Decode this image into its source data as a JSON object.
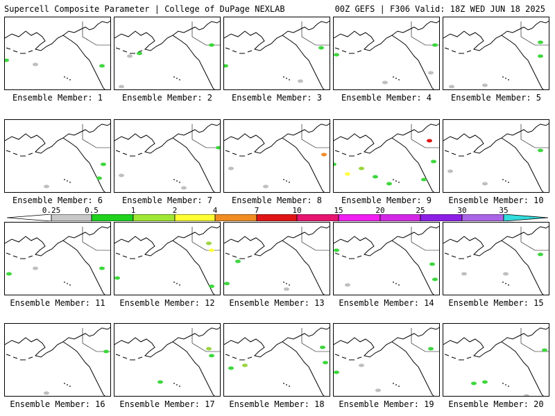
{
  "header": {
    "title_left": "Supercell Composite Parameter | College of DuPage NEXLAB",
    "title_right": "00Z GEFS | F306 Valid: 18Z WED JUN 18 2025"
  },
  "caption_prefix": "Ensemble Member: ",
  "members": [
    {
      "label": "Ensemble Member: 1",
      "blobs": [
        [
          2,
          62,
          "#3ed63e"
        ],
        [
          6,
          118,
          "#bfbfbf"
        ],
        [
          44,
          68,
          "#bfbfbf"
        ],
        [
          140,
          70,
          "#3ed63e"
        ]
      ]
    },
    {
      "label": "Ensemble Member: 2",
      "blobs": [
        [
          22,
          56,
          "#bfbfbf"
        ],
        [
          36,
          52,
          "#3ed63e"
        ],
        [
          10,
          100,
          "#bfbfbf"
        ],
        [
          140,
          40,
          "#3ed63e"
        ]
      ]
    },
    {
      "label": "Ensemble Member: 3",
      "blobs": [
        [
          2,
          70,
          "#3ed63e"
        ],
        [
          110,
          92,
          "#bfbfbf"
        ],
        [
          140,
          44,
          "#3ed63e"
        ],
        [
          6,
          118,
          "#bfbfbf"
        ]
      ]
    },
    {
      "label": "Ensemble Member: 4",
      "blobs": [
        [
          4,
          54,
          "#3ed63e"
        ],
        [
          74,
          94,
          "#bfbfbf"
        ],
        [
          146,
          40,
          "#3ed63e"
        ],
        [
          140,
          80,
          "#bfbfbf"
        ]
      ]
    },
    {
      "label": "Ensemble Member: 5",
      "blobs": [
        [
          140,
          36,
          "#3ed63e"
        ],
        [
          140,
          56,
          "#3ed63e"
        ],
        [
          60,
          98,
          "#bfbfbf"
        ],
        [
          12,
          100,
          "#bfbfbf"
        ]
      ]
    },
    {
      "label": "Ensemble Member: 6",
      "blobs": [
        [
          136,
          84,
          "#3ed63e"
        ],
        [
          142,
          64,
          "#3ed63e"
        ],
        [
          60,
          96,
          "#bfbfbf"
        ]
      ]
    },
    {
      "label": "Ensemble Member: 7",
      "blobs": [
        [
          150,
          40,
          "#3ed63e"
        ],
        [
          10,
          80,
          "#bfbfbf"
        ],
        [
          100,
          98,
          "#bfbfbf"
        ]
      ]
    },
    {
      "label": "Ensemble Member: 8",
      "blobs": [
        [
          144,
          50,
          "#f08c22"
        ],
        [
          10,
          70,
          "#bfbfbf"
        ],
        [
          60,
          96,
          "#bfbfbf"
        ]
      ]
    },
    {
      "label": "Ensemble Member: 9",
      "blobs": [
        [
          0,
          64,
          "#3ed63e"
        ],
        [
          20,
          78,
          "#ffff40"
        ],
        [
          40,
          70,
          "#9ad63e"
        ],
        [
          60,
          82,
          "#3ed63e"
        ],
        [
          80,
          92,
          "#3ed63e"
        ],
        [
          130,
          86,
          "#3ed63e"
        ],
        [
          138,
          30,
          "#e01414"
        ],
        [
          144,
          60,
          "#3ed63e"
        ]
      ]
    },
    {
      "label": "Ensemble Member: 10",
      "blobs": [
        [
          140,
          44,
          "#3ed63e"
        ],
        [
          60,
          92,
          "#bfbfbf"
        ],
        [
          10,
          74,
          "#bfbfbf"
        ]
      ]
    },
    {
      "label": "Ensemble Member: 11",
      "blobs": [
        [
          6,
          74,
          "#3ed63e"
        ],
        [
          44,
          66,
          "#bfbfbf"
        ],
        [
          140,
          66,
          "#3ed63e"
        ]
      ]
    },
    {
      "label": "Ensemble Member: 12",
      "blobs": [
        [
          136,
          30,
          "#9ad63e"
        ],
        [
          140,
          40,
          "#ffff40"
        ],
        [
          4,
          80,
          "#3ed63e"
        ],
        [
          140,
          92,
          "#3ed63e"
        ]
      ]
    },
    {
      "label": "Ensemble Member: 13",
      "blobs": [
        [
          20,
          56,
          "#3ed63e"
        ],
        [
          4,
          88,
          "#3ed63e"
        ],
        [
          90,
          96,
          "#bfbfbf"
        ]
      ]
    },
    {
      "label": "Ensemble Member: 14",
      "blobs": [
        [
          4,
          40,
          "#3ed63e"
        ],
        [
          142,
          60,
          "#3ed63e"
        ],
        [
          20,
          90,
          "#bfbfbf"
        ],
        [
          146,
          82,
          "#3ed63e"
        ]
      ]
    },
    {
      "label": "Ensemble Member: 15",
      "blobs": [
        [
          140,
          46,
          "#3ed63e"
        ],
        [
          30,
          74,
          "#bfbfbf"
        ],
        [
          90,
          74,
          "#bfbfbf"
        ]
      ]
    },
    {
      "label": "Ensemble Member: 16",
      "blobs": [
        [
          146,
          40,
          "#3ed63e"
        ],
        [
          60,
          100,
          "#bfbfbf"
        ]
      ]
    },
    {
      "label": "Ensemble Member: 17",
      "blobs": [
        [
          136,
          36,
          "#9ad63e"
        ],
        [
          140,
          46,
          "#3ed63e"
        ],
        [
          66,
          84,
          "#3ed63e"
        ]
      ]
    },
    {
      "label": "Ensemble Member: 18",
      "blobs": [
        [
          10,
          64,
          "#3ed63e"
        ],
        [
          30,
          60,
          "#9ad63e"
        ],
        [
          142,
          34,
          "#3ed63e"
        ],
        [
          146,
          56,
          "#3ed63e"
        ]
      ]
    },
    {
      "label": "Ensemble Member: 19",
      "blobs": [
        [
          4,
          70,
          "#3ed63e"
        ],
        [
          40,
          60,
          "#bfbfbf"
        ],
        [
          140,
          36,
          "#3ed63e"
        ],
        [
          64,
          96,
          "#bfbfbf"
        ]
      ]
    },
    {
      "label": "Ensemble Member: 20",
      "blobs": [
        [
          44,
          86,
          "#3ed63e"
        ],
        [
          60,
          84,
          "#3ed63e"
        ],
        [
          120,
          104,
          "#bfbfbf"
        ],
        [
          146,
          38,
          "#3ed63e"
        ]
      ]
    }
  ],
  "colorbar": {
    "labels": [
      "0.25",
      "0.5",
      "1",
      "2",
      "4",
      "7",
      "10",
      "15",
      "20",
      "25",
      "30",
      "35"
    ],
    "colors": [
      "#ffffff",
      "#c8c8c8",
      "#1ed21e",
      "#a0e632",
      "#ffff32",
      "#f08c22",
      "#e01414",
      "#e6146e",
      "#f01ef0",
      "#d228e6",
      "#8c1ee6",
      "#aa64e6",
      "#32dcdc"
    ]
  },
  "style": {
    "coast_color": "#000000",
    "border_color": "#000000"
  }
}
